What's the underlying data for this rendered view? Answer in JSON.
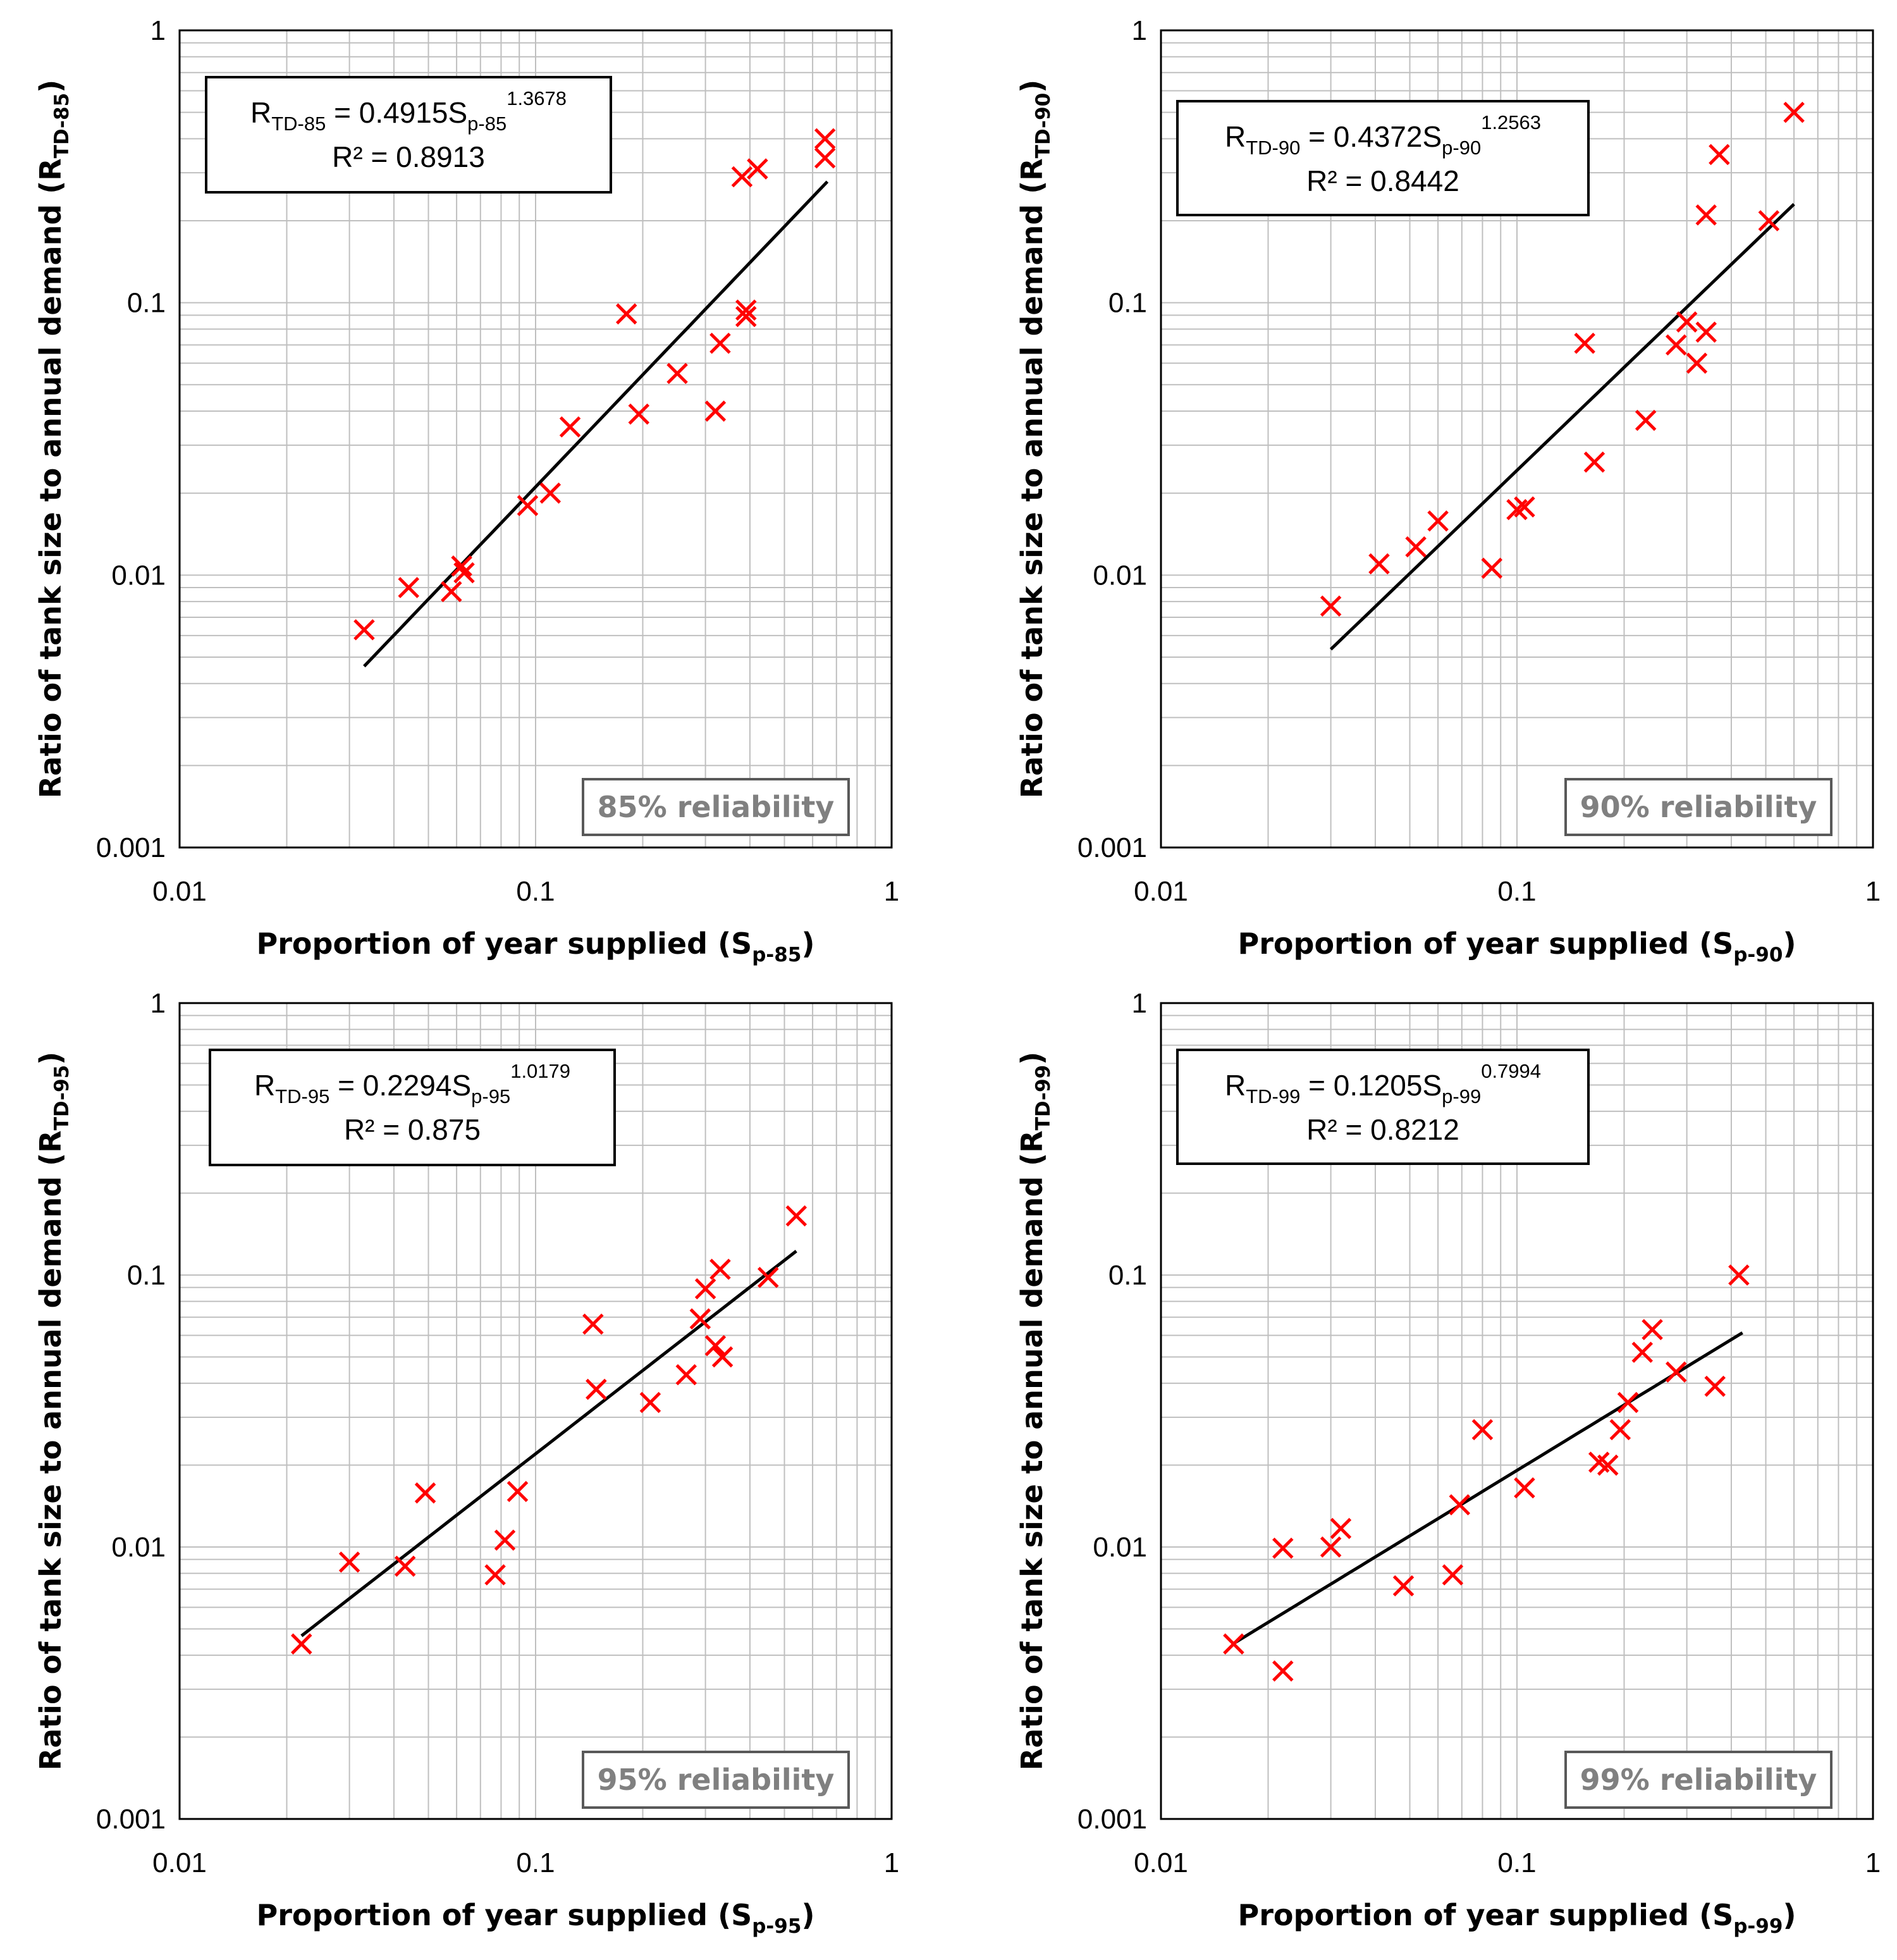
{
  "chart_data": [
    {
      "type": "scatter",
      "scale": "log-log",
      "xlim": [
        0.01,
        1
      ],
      "ylim": [
        0.001,
        1
      ],
      "x_ticks": [
        "0.01",
        "0.1",
        "1"
      ],
      "y_ticks": [
        "0.001",
        "0.01",
        "0.1",
        "1"
      ],
      "xlabel_main": "Proportion of year supplied (S",
      "xlabel_sub": "p-85",
      "xlabel_end": ")",
      "ylabel_main": "Ratio of tank size to annual demand (R",
      "ylabel_sub": "TD-85",
      "ylabel_end": ")",
      "equation": {
        "lhs": "R",
        "lhs_sub": "TD-85",
        "mid": " = 0.4915S",
        "var_sub": "p-85",
        "exponent": "1.3678",
        "r2": "R² = 0.8913"
      },
      "reliability_label": "85% reliability",
      "marker_color": "#ff0000",
      "trend_color": "#000000",
      "trend": {
        "a": 0.4915,
        "b": 1.3678,
        "x_range": [
          0.033,
          0.66
        ]
      },
      "points": [
        [
          0.033,
          0.0063
        ],
        [
          0.044,
          0.009
        ],
        [
          0.058,
          0.0087
        ],
        [
          0.062,
          0.0108
        ],
        [
          0.063,
          0.0102
        ],
        [
          0.095,
          0.018
        ],
        [
          0.11,
          0.02
        ],
        [
          0.125,
          0.035
        ],
        [
          0.18,
          0.091
        ],
        [
          0.195,
          0.039
        ],
        [
          0.25,
          0.055
        ],
        [
          0.32,
          0.04
        ],
        [
          0.33,
          0.071
        ],
        [
          0.38,
          0.29
        ],
        [
          0.39,
          0.094
        ],
        [
          0.39,
          0.089
        ],
        [
          0.42,
          0.31
        ],
        [
          0.65,
          0.4
        ],
        [
          0.65,
          0.34
        ]
      ]
    },
    {
      "type": "scatter",
      "scale": "log-log",
      "xlim": [
        0.01,
        1
      ],
      "ylim": [
        0.001,
        1
      ],
      "x_ticks": [
        "0.01",
        "0.1",
        "1"
      ],
      "y_ticks": [
        "0.001",
        "0.01",
        "0.1",
        "1"
      ],
      "xlabel_main": "Proportion of year supplied (S",
      "xlabel_sub": "p-90",
      "xlabel_end": ")",
      "ylabel_main": "Ratio of tank size to annual demand (R",
      "ylabel_sub": "TD-90",
      "ylabel_end": ")",
      "equation": {
        "lhs": "R",
        "lhs_sub": "TD-90",
        "mid": " = 0.4372S",
        "var_sub": "p-90",
        "exponent": "1.2563",
        "r2": "R² = 0.8442"
      },
      "reliability_label": "90% reliability",
      "marker_color": "#ff0000",
      "trend_color": "#000000",
      "trend": {
        "a": 0.4372,
        "b": 1.2563,
        "x_range": [
          0.03,
          0.6
        ]
      },
      "points": [
        [
          0.03,
          0.0077
        ],
        [
          0.041,
          0.011
        ],
        [
          0.052,
          0.0127
        ],
        [
          0.06,
          0.0158
        ],
        [
          0.085,
          0.0106
        ],
        [
          0.1,
          0.0174
        ],
        [
          0.105,
          0.0178
        ],
        [
          0.155,
          0.071
        ],
        [
          0.165,
          0.026
        ],
        [
          0.23,
          0.037
        ],
        [
          0.28,
          0.07
        ],
        [
          0.3,
          0.085
        ],
        [
          0.32,
          0.06
        ],
        [
          0.34,
          0.21
        ],
        [
          0.34,
          0.078
        ],
        [
          0.37,
          0.35
        ],
        [
          0.51,
          0.2
        ],
        [
          0.6,
          0.5
        ]
      ]
    },
    {
      "type": "scatter",
      "scale": "log-log",
      "xlim": [
        0.01,
        1
      ],
      "ylim": [
        0.001,
        1
      ],
      "x_ticks": [
        "0.01",
        "0.1",
        "1"
      ],
      "y_ticks": [
        "0.001",
        "0.01",
        "0.1",
        "1"
      ],
      "xlabel_main": "Proportion of year supplied (S",
      "xlabel_sub": "p-95",
      "xlabel_end": ")",
      "ylabel_main": "Ratio of tank size to annual demand (R",
      "ylabel_sub": "TD-95",
      "ylabel_end": ")",
      "equation": {
        "lhs": "R",
        "lhs_sub": "TD-95",
        "mid": " = 0.2294S",
        "var_sub": "p-95",
        "exponent": "1.0179",
        "r2": "R² = 0.875"
      },
      "reliability_label": "95% reliability",
      "marker_color": "#ff0000",
      "trend_color": "#000000",
      "trend": {
        "a": 0.2294,
        "b": 1.0179,
        "x_range": [
          0.022,
          0.54
        ]
      },
      "points": [
        [
          0.022,
          0.0044
        ],
        [
          0.03,
          0.0088
        ],
        [
          0.043,
          0.0085
        ],
        [
          0.049,
          0.0158
        ],
        [
          0.077,
          0.0079
        ],
        [
          0.082,
          0.0106
        ],
        [
          0.089,
          0.016
        ],
        [
          0.145,
          0.066
        ],
        [
          0.148,
          0.038
        ],
        [
          0.21,
          0.034
        ],
        [
          0.265,
          0.043
        ],
        [
          0.29,
          0.069
        ],
        [
          0.3,
          0.089
        ],
        [
          0.32,
          0.055
        ],
        [
          0.33,
          0.105
        ],
        [
          0.335,
          0.05
        ],
        [
          0.45,
          0.098
        ],
        [
          0.54,
          0.165
        ]
      ]
    },
    {
      "type": "scatter",
      "scale": "log-log",
      "xlim": [
        0.01,
        1
      ],
      "ylim": [
        0.001,
        1
      ],
      "x_ticks": [
        "0.01",
        "0.1",
        "1"
      ],
      "y_ticks": [
        "0.001",
        "0.01",
        "0.1",
        "1"
      ],
      "xlabel_main": "Proportion of year supplied (S",
      "xlabel_sub": "p-99",
      "xlabel_end": ")",
      "ylabel_main": "Ratio of tank size to annual demand (R",
      "ylabel_sub": "TD-99",
      "ylabel_end": ")",
      "equation": {
        "lhs": "R",
        "lhs_sub": "TD-99",
        "mid": " = 0.1205S",
        "var_sub": "p-99",
        "exponent": "0.7994",
        "r2": "R² = 0.8212"
      },
      "reliability_label": "99% reliability",
      "marker_color": "#ff0000",
      "trend_color": "#000000",
      "trend": {
        "a": 0.1205,
        "b": 0.7994,
        "x_range": [
          0.016,
          0.43
        ]
      },
      "points": [
        [
          0.016,
          0.0044
        ],
        [
          0.022,
          0.0035
        ],
        [
          0.022,
          0.0099
        ],
        [
          0.03,
          0.01
        ],
        [
          0.032,
          0.0117
        ],
        [
          0.048,
          0.0072
        ],
        [
          0.066,
          0.0079
        ],
        [
          0.069,
          0.0143
        ],
        [
          0.08,
          0.027
        ],
        [
          0.105,
          0.0165
        ],
        [
          0.17,
          0.0205
        ],
        [
          0.18,
          0.02
        ],
        [
          0.195,
          0.027
        ],
        [
          0.205,
          0.034
        ],
        [
          0.225,
          0.052
        ],
        [
          0.24,
          0.063
        ],
        [
          0.28,
          0.044
        ],
        [
          0.36,
          0.039
        ],
        [
          0.42,
          0.1
        ]
      ]
    }
  ]
}
